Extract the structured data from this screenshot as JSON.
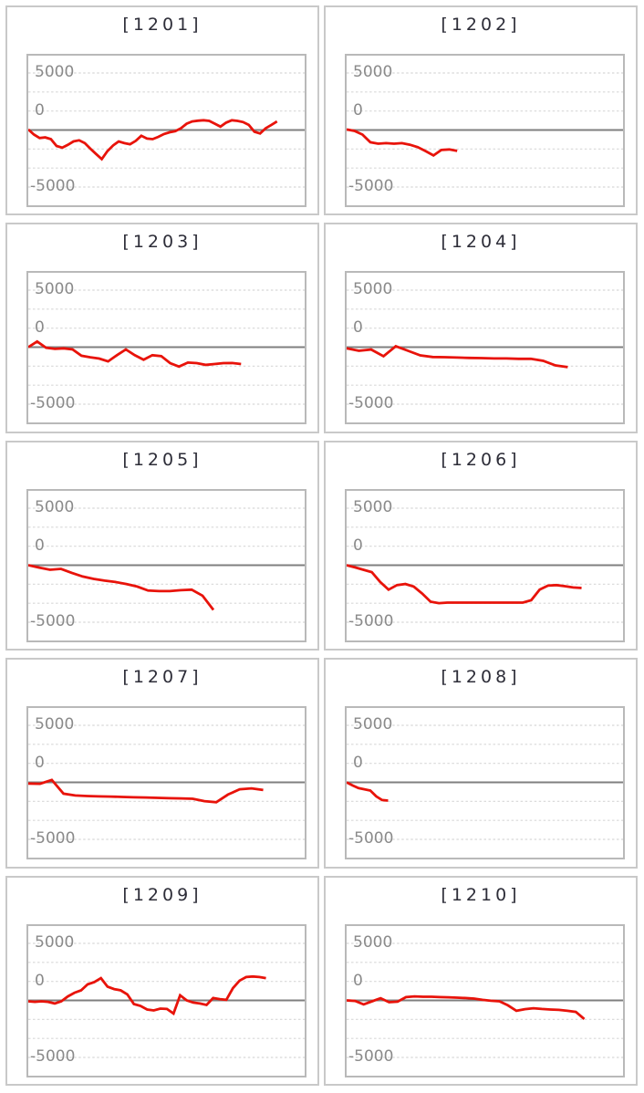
{
  "colors": {
    "series_line": "#e8130a",
    "zero_line": "#7f7f7f",
    "grid_line": "#d8d8d8",
    "plot_border": "#b9b9b9",
    "cell_border": "#c9c9c9",
    "title_text": "#2d2d38",
    "tick_text": "#8a8a8a",
    "background": "#ffffff"
  },
  "axis": {
    "tick_labels": [
      "5000",
      "0",
      "-5000"
    ],
    "ylim": [
      -6550,
      6550
    ],
    "grid_interval": 1667,
    "grid_line_count": 7,
    "zero_line_solid": true,
    "grid_style": "dashed"
  },
  "chart_data": [
    {
      "type": "line",
      "title": "[1201]",
      "end_fraction": 0.9,
      "values": [
        50,
        -400,
        -700,
        -650,
        -800,
        -1400,
        -1550,
        -1300,
        -1000,
        -900,
        -1150,
        -1650,
        -2100,
        -2550,
        -1850,
        -1350,
        -1000,
        -1150,
        -1250,
        -950,
        -500,
        -750,
        -800,
        -600,
        -350,
        -200,
        -100,
        150,
        550,
        750,
        820,
        860,
        800,
        550,
        300,
        650,
        860,
        800,
        700,
        450,
        -150,
        -300,
        150,
        450,
        750
      ]
    },
    {
      "type": "line",
      "title": "[1202]",
      "end_fraction": 0.4,
      "values": [
        50,
        -80,
        -400,
        -1070,
        -1200,
        -1150,
        -1200,
        -1150,
        -1290,
        -1500,
        -1850,
        -2230,
        -1750,
        -1700,
        -1830
      ]
    },
    {
      "type": "line",
      "title": "[1203]",
      "end_fraction": 0.77,
      "values": [
        0,
        500,
        -50,
        -150,
        -100,
        -200,
        -750,
        -890,
        -1000,
        -1250,
        -700,
        -200,
        -700,
        -1100,
        -700,
        -780,
        -1400,
        -1700,
        -1350,
        -1400,
        -1550,
        -1480,
        -1400,
        -1390,
        -1480
      ]
    },
    {
      "type": "line",
      "title": "[1204]",
      "end_fraction": 0.8,
      "values": [
        -100,
        -320,
        -210,
        -800,
        80,
        -320,
        -720,
        -860,
        -880,
        -910,
        -940,
        -960,
        -990,
        -990,
        -1020,
        -1020,
        -1200,
        -1600,
        -1750
      ]
    },
    {
      "type": "line",
      "title": "[1205]",
      "end_fraction": 0.67,
      "values": [
        0,
        -210,
        -400,
        -320,
        -670,
        -990,
        -1200,
        -1350,
        -1470,
        -1650,
        -1870,
        -2220,
        -2270,
        -2270,
        -2190,
        -2140,
        -2670,
        -3920
      ]
    },
    {
      "type": "line",
      "title": "[1206]",
      "end_fraction": 0.85,
      "values": [
        0,
        -190,
        -400,
        -610,
        -1470,
        -2140,
        -1740,
        -1650,
        -1870,
        -2480,
        -3200,
        -3330,
        -3280,
        -3280,
        -3280,
        -3280,
        -3280,
        -3280,
        -3280,
        -3280,
        -3280,
        -3280,
        -3070,
        -2140,
        -1790,
        -1740,
        -1840,
        -1950,
        -2000
      ]
    },
    {
      "type": "line",
      "title": "[1207]",
      "end_fraction": 0.85,
      "values": [
        -100,
        -130,
        210,
        -990,
        -1150,
        -1200,
        -1230,
        -1250,
        -1280,
        -1310,
        -1330,
        -1360,
        -1390,
        -1410,
        -1440,
        -1650,
        -1740,
        -1070,
        -610,
        -530,
        -670
      ]
    },
    {
      "type": "line",
      "title": "[1208]",
      "end_fraction": 0.15,
      "values": [
        0,
        -270,
        -500,
        -610,
        -720,
        -1230,
        -1550,
        -1600
      ]
    },
    {
      "type": "line",
      "title": "[1209]",
      "end_fraction": 0.86,
      "values": [
        -80,
        -130,
        -80,
        -130,
        -270,
        -80,
        350,
        670,
        880,
        1410,
        1600,
        1950,
        1200,
        990,
        880,
        530,
        -320,
        -480,
        -800,
        -880,
        -720,
        -750,
        -1150,
        450,
        0,
        -190,
        -270,
        -400,
        210,
        110,
        50,
        1070,
        1740,
        2050,
        2100,
        2050,
        1950
      ]
    },
    {
      "type": "line",
      "title": "[1210]",
      "end_fraction": 0.86,
      "values": [
        0,
        -50,
        -350,
        -80,
        190,
        -160,
        -110,
        290,
        350,
        320,
        320,
        290,
        270,
        240,
        210,
        160,
        50,
        -30,
        -80,
        -430,
        -910,
        -770,
        -690,
        -750,
        -800,
        -830,
        -910,
        -1010,
        -1630
      ]
    }
  ]
}
